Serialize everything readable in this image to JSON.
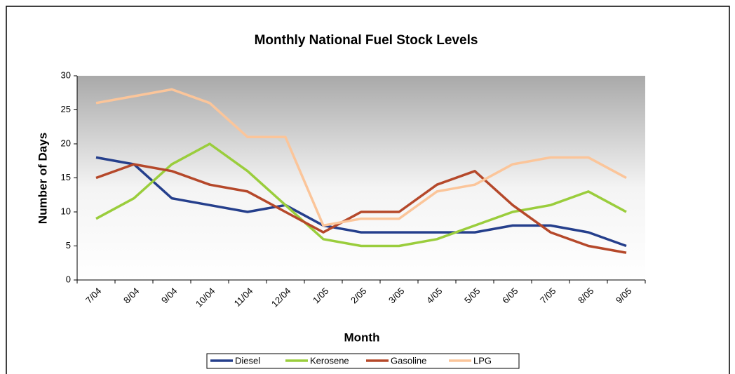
{
  "chart_data": {
    "type": "line",
    "title": "Monthly National Fuel Stock Levels",
    "x_label": "Month",
    "y_label": "Number of Days",
    "categories": [
      "7/04",
      "8/04",
      "9/04",
      "10/04",
      "11/04",
      "12/04",
      "1/05",
      "2/05",
      "3/05",
      "4/05",
      "5/05",
      "6/05",
      "7/05",
      "8/05",
      "9/05"
    ],
    "series": [
      {
        "name": "Diesel",
        "color": "#253f8c",
        "values": [
          18,
          17,
          12,
          11,
          10,
          11,
          8,
          7,
          7,
          7,
          7,
          8,
          8,
          7,
          5
        ]
      },
      {
        "name": "Kerosene",
        "color": "#9acd3c",
        "values": [
          9,
          12,
          17,
          20,
          16,
          11,
          6,
          5,
          5,
          6,
          8,
          10,
          11,
          13,
          10
        ]
      },
      {
        "name": "Gasoline",
        "color": "#b5482a",
        "values": [
          15,
          17,
          16,
          14,
          13,
          10,
          7,
          10,
          10,
          14,
          16,
          11,
          7,
          5,
          4
        ]
      },
      {
        "name": "LPG",
        "color": "#fbc59a",
        "values": [
          26,
          27,
          28,
          26,
          21,
          21,
          8,
          9,
          9,
          13,
          14,
          17,
          18,
          18,
          15
        ]
      }
    ],
    "ylim": [
      0,
      30
    ],
    "yticks": [
      0,
      5,
      10,
      15,
      20,
      25,
      30
    ],
    "legend": "bottom"
  }
}
